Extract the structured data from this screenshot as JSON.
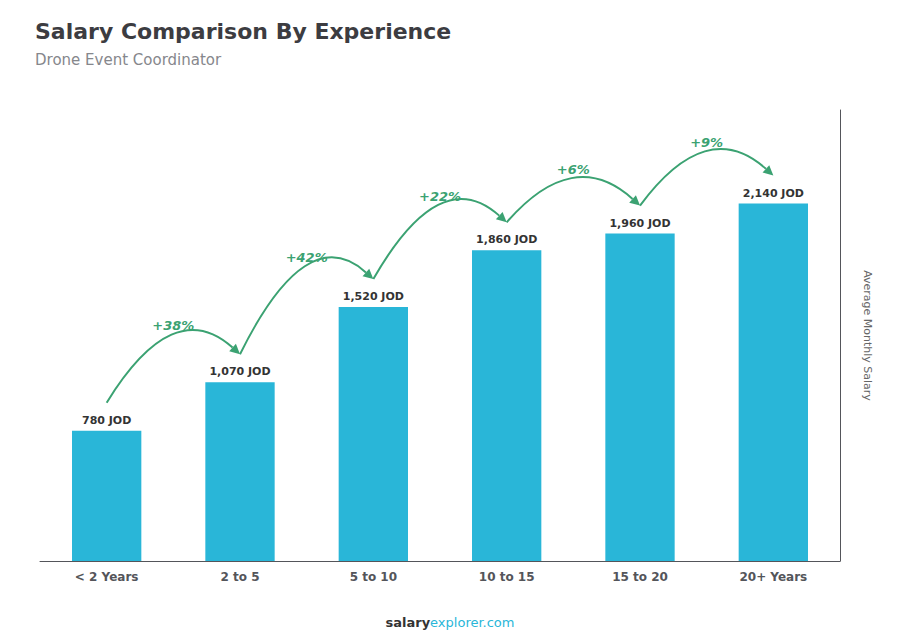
{
  "chart_data": {
    "type": "bar",
    "title": "Salary Comparison By Experience",
    "subtitle": "Drone Event Coordinator",
    "ylabel": "Average Monthly Salary",
    "categories": [
      "< 2 Years",
      "2 to 5",
      "5 to 10",
      "10 to 15",
      "15 to 20",
      "20+ Years"
    ],
    "values": [
      780,
      1070,
      1520,
      1860,
      1960,
      2140
    ],
    "value_labels": [
      "780 JOD",
      "1,070 JOD",
      "1,520 JOD",
      "1,860 JOD",
      "1,960 JOD",
      "2,140 JOD"
    ],
    "data_labels": true,
    "color": "#29b6d8",
    "annotations": [
      "+38%",
      "+42%",
      "+22%",
      "+6%",
      "+9%"
    ],
    "watermark": [
      "salary",
      "explorer.com"
    ],
    "ylim": [
      0,
      2700
    ],
    "grid": false,
    "tick_labels": "x"
  }
}
